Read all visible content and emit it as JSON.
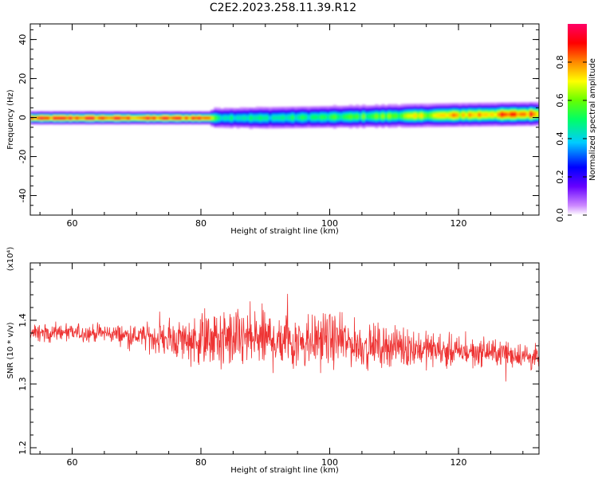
{
  "title": "C2E2.2023.258.11.39.R12",
  "chart_data": [
    {
      "type": "heatmap",
      "xlabel": "Height of straight line (km)",
      "ylabel": "Frequency (Hz)",
      "xlim": [
        53.5,
        132.5
      ],
      "ylim": [
        -50,
        48
      ],
      "x_ticks": [
        "60",
        "80",
        "100",
        "120"
      ],
      "y_ticks": [
        "-40",
        "-20",
        "0",
        "20",
        "40"
      ],
      "colorbar": {
        "label": "Normalized spectral amplitude",
        "ticks": [
          "0.0",
          "0.2",
          "0.4",
          "0.6",
          "0.8"
        ],
        "range": [
          0,
          1
        ]
      },
      "trace": {
        "x": [
          54,
          60,
          70,
          80,
          81,
          82,
          90,
          100,
          110,
          120,
          132
        ],
        "frequency": [
          0,
          0,
          0,
          0,
          0,
          0,
          0,
          0.5,
          1,
          1.5,
          2
        ],
        "amplitude": [
          0.85,
          0.9,
          0.85,
          0.9,
          0.88,
          0.5,
          0.45,
          0.5,
          0.6,
          0.75,
          0.85
        ],
        "spread": [
          2.5,
          2.5,
          2.5,
          2.5,
          2.5,
          4,
          4.5,
          4.5,
          4.5,
          4.5,
          4.5
        ]
      }
    },
    {
      "type": "line",
      "xlabel": "Height of straight line (km)",
      "ylabel": "SNR (10 * v/v)",
      "exponent_label": "(x10⁴)",
      "xlim": [
        53.5,
        132.5
      ],
      "ylim": [
        1.19,
        1.49
      ],
      "x_ticks": [
        "60",
        "80",
        "100",
        "120"
      ],
      "y_ticks": [
        "1.2",
        "1.3",
        "1.4"
      ],
      "series": [
        {
          "color": "#ee3333",
          "envelope": {
            "x": [
              54,
              60,
              65,
              70,
              75,
              80,
              85,
              90,
              95,
              100,
              105,
              110,
              115,
              120,
              125,
              130,
              132
            ],
            "mean": [
              1.38,
              1.38,
              1.38,
              1.375,
              1.37,
              1.37,
              1.37,
              1.37,
              1.37,
              1.37,
              1.36,
              1.36,
              1.355,
              1.35,
              1.35,
              1.345,
              1.34
            ],
            "amplitude": [
              0.02,
              0.02,
              0.02,
              0.025,
              0.04,
              0.06,
              0.07,
              0.07,
              0.07,
              0.06,
              0.05,
              0.045,
              0.04,
              0.035,
              0.03,
              0.03,
              0.03
            ]
          }
        }
      ]
    }
  ]
}
